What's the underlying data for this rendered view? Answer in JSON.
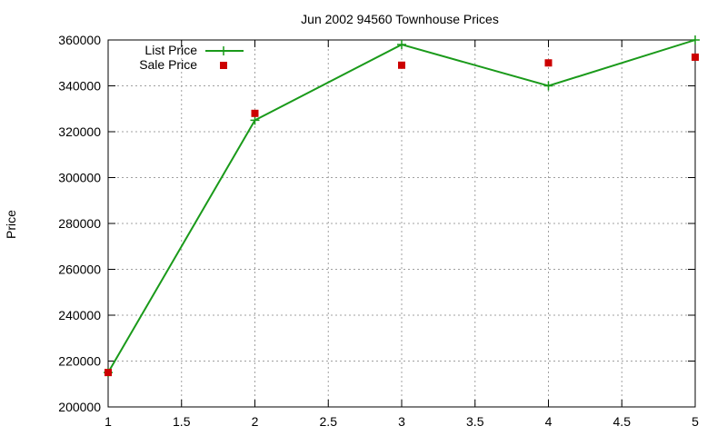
{
  "chart_data": {
    "type": "line",
    "title": "Jun 2002 94560 Townhouse Prices",
    "xlabel": "",
    "ylabel": "Price",
    "xlim": [
      1,
      5
    ],
    "ylim": [
      200000,
      360000
    ],
    "x_ticks": [
      "1",
      "1.5",
      "2",
      "2.5",
      "3",
      "3.5",
      "4",
      "4.5",
      "5"
    ],
    "y_ticks": [
      "200000",
      "220000",
      "240000",
      "260000",
      "280000",
      "300000",
      "320000",
      "340000",
      "360000"
    ],
    "grid": true,
    "legend_position": "top-left",
    "series": [
      {
        "name": "List Price",
        "style": "line-with-plus-markers",
        "color": "#1a9a1a",
        "points": [
          {
            "x": 1,
            "y": 215000
          },
          {
            "x": 2,
            "y": 325000
          },
          {
            "x": 3,
            "y": 358000
          },
          {
            "x": 4,
            "y": 340000
          },
          {
            "x": 5,
            "y": 360000
          }
        ]
      },
      {
        "name": "Sale Price",
        "style": "square-markers",
        "color": "#cc0000",
        "points": [
          {
            "x": 1,
            "y": 215000
          },
          {
            "x": 2,
            "y": 328000
          },
          {
            "x": 3,
            "y": 349000
          },
          {
            "x": 4,
            "y": 350000
          },
          {
            "x": 5,
            "y": 352500
          }
        ]
      }
    ]
  }
}
